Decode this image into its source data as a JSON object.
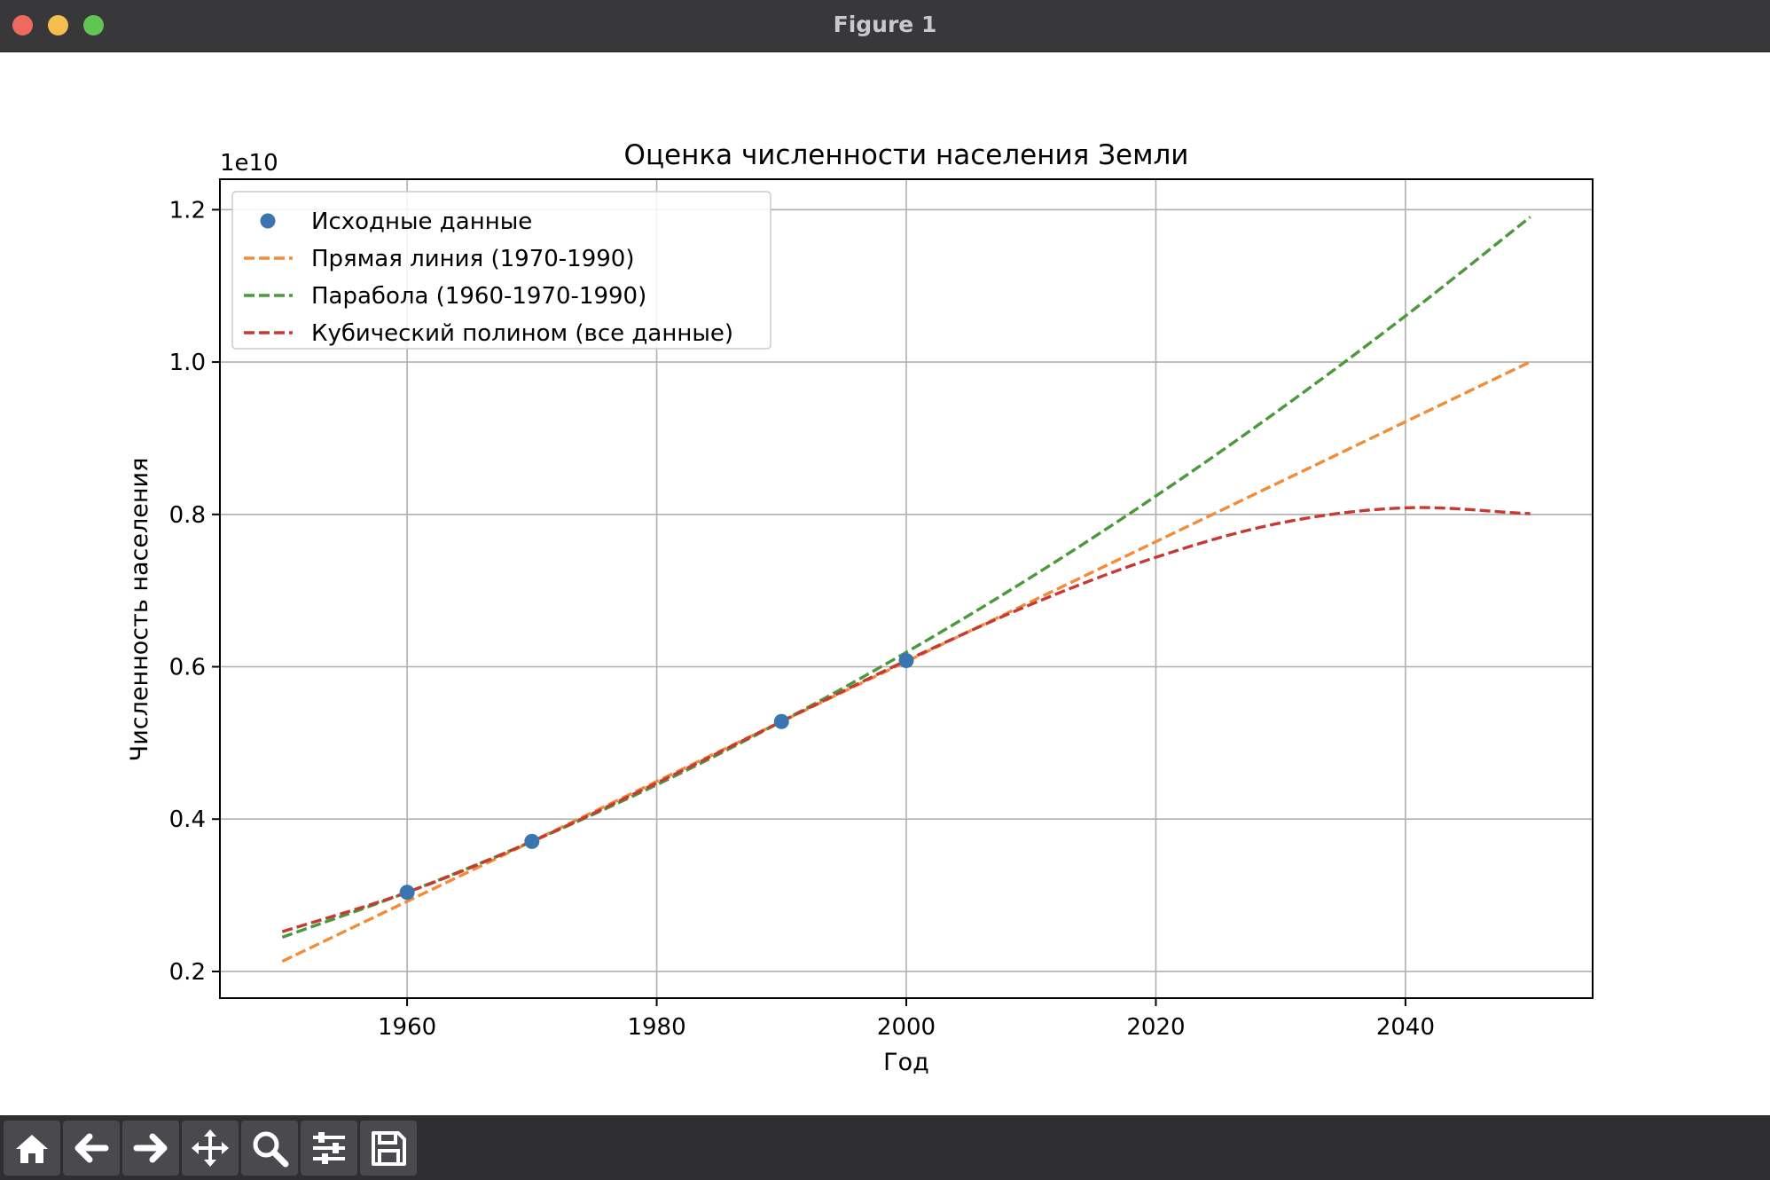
{
  "window": {
    "title": "Figure 1"
  },
  "toolbar": {
    "buttons": [
      {
        "name": "home-button",
        "icon": "home-icon"
      },
      {
        "name": "back-button",
        "icon": "arrow-left-icon"
      },
      {
        "name": "forward-button",
        "icon": "arrow-right-icon"
      },
      {
        "name": "pan-button",
        "icon": "move-icon"
      },
      {
        "name": "zoom-button",
        "icon": "magnifier-icon"
      },
      {
        "name": "configure-subplots-button",
        "icon": "sliders-icon"
      },
      {
        "name": "save-button",
        "icon": "floppy-disk-icon"
      }
    ]
  },
  "chart_data": {
    "type": "line",
    "title": "Оценка численности населения Земли",
    "xlabel": "Год",
    "ylabel": "Численность населения",
    "y_offset_label": "1e10",
    "xlim": [
      1945,
      2055
    ],
    "ylim": [
      0.165,
      1.24
    ],
    "xticks": [
      1960,
      1980,
      2000,
      2020,
      2040
    ],
    "xtick_labels": [
      "1960",
      "1980",
      "2000",
      "2020",
      "2040"
    ],
    "yticks": [
      0.2,
      0.4,
      0.6,
      0.8,
      1.0,
      1.2
    ],
    "ytick_labels": [
      "0.2",
      "0.4",
      "0.6",
      "0.8",
      "1.0",
      "1.2"
    ],
    "grid": true,
    "legend_position": "upper-left",
    "points": {
      "name": "Исходные данные",
      "color": "#3a75b0",
      "x": [
        1960,
        1970,
        1990,
        2000
      ],
      "y": [
        0.3039,
        0.3707,
        0.5281,
        0.6081
      ]
    },
    "series": [
      {
        "name": "Прямая линия (1970-1990)",
        "color": "#f28c38",
        "style": "dashed",
        "x": [
          1950,
          1970,
          1990,
          2000,
          2020,
          2040,
          2050
        ],
        "y": [
          0.2133,
          0.3707,
          0.5281,
          0.6068,
          0.7642,
          0.9216,
          1.0003
        ]
      },
      {
        "name": "Парабола (1960-1970-1990)",
        "color": "#4a9a3c",
        "style": "dashed",
        "x": [
          1950,
          1960,
          1970,
          1980,
          1990,
          2000,
          2010,
          2020,
          2030,
          2040,
          2050
        ],
        "y": [
          0.2449,
          0.3039,
          0.3707,
          0.445,
          0.5281,
          0.619,
          0.7176,
          0.8241,
          0.9385,
          1.0605,
          1.1904
        ]
      },
      {
        "name": "Кубический полином (все данные)",
        "color": "#c73a33",
        "style": "dashed",
        "x": [
          1950,
          1960,
          1970,
          1980,
          1990,
          2000,
          2010,
          2020,
          2030,
          2040,
          2050
        ],
        "y": [
          0.2522,
          0.3039,
          0.3707,
          0.4474,
          0.5281,
          0.6081,
          0.6819,
          0.7437,
          0.7888,
          0.8086,
          0.8009
        ]
      }
    ]
  }
}
